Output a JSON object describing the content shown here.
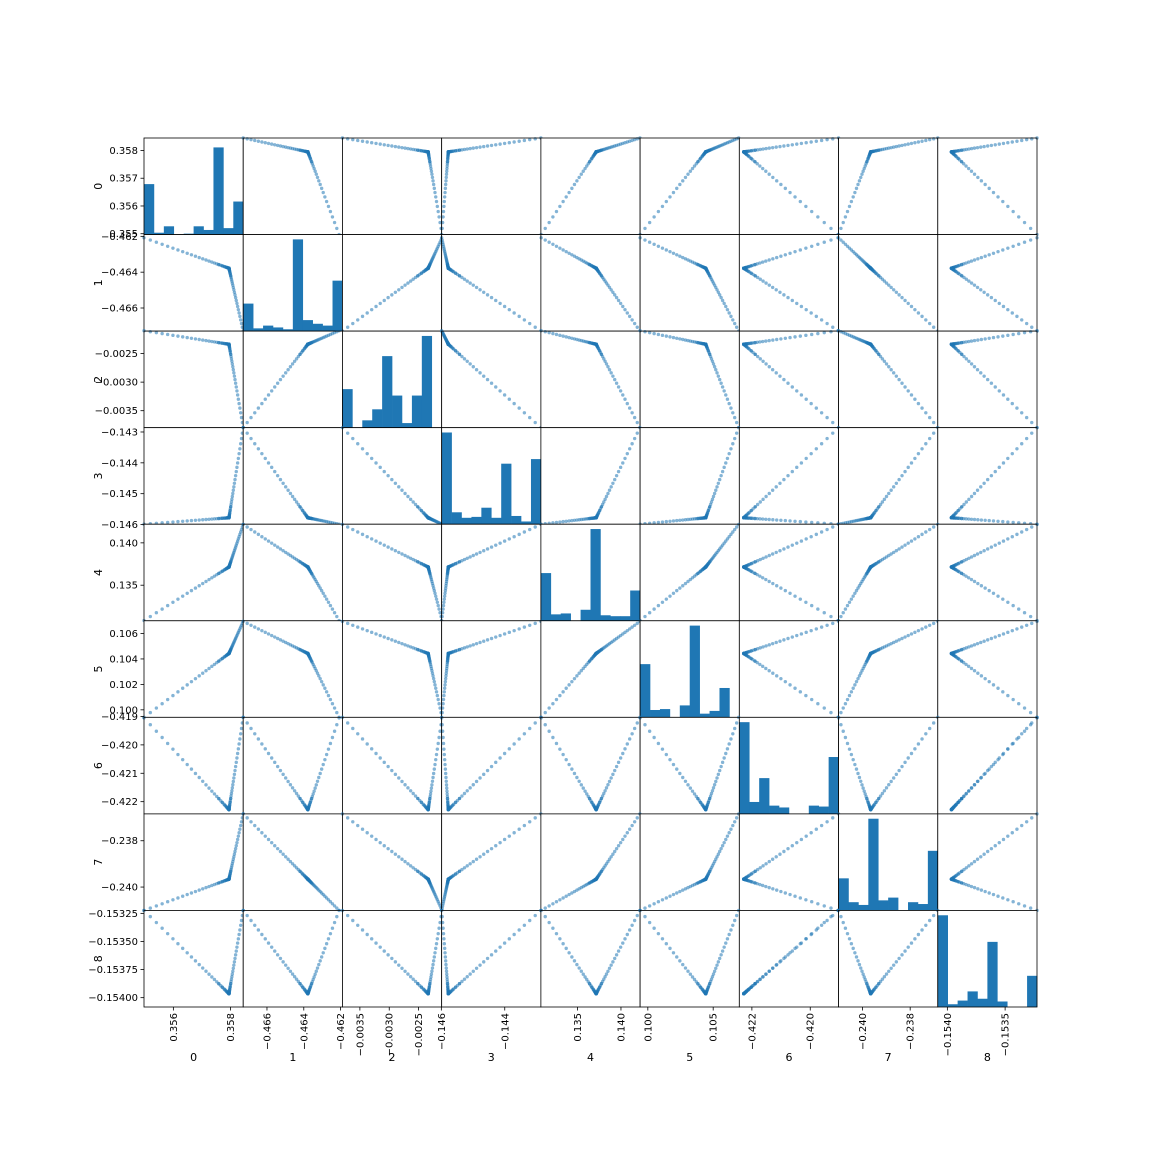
{
  "chart_data": {
    "type": "scatter",
    "variables": [
      "0",
      "1",
      "2",
      "3",
      "4",
      "5",
      "6",
      "7",
      "8"
    ],
    "axes": [
      {
        "name": "0",
        "range": [
          0.35497,
          0.35845
        ],
        "yticks": [
          "0.355",
          "0.356",
          "0.357",
          "0.358"
        ],
        "xticks": [
          "0.356",
          "0.358"
        ]
      },
      {
        "name": "1",
        "range": [
          -0.46729,
          -0.4619
        ],
        "yticks": [
          "−0.462",
          "−0.464",
          "−0.466"
        ],
        "xticks": [
          "−0.466",
          "−0.464",
          "−0.462"
        ]
      },
      {
        "name": "2",
        "range": [
          -0.003797,
          -0.002107
        ],
        "yticks": [
          "−0.0025",
          "−0.0030",
          "−0.0035"
        ],
        "xticks": [
          "−0.0035",
          "−0.0030",
          "−0.0025"
        ]
      },
      {
        "name": "3",
        "range": [
          -0.14599,
          -0.14286
        ],
        "yticks": [
          "−0.143",
          "−0.144",
          "−0.145",
          "−0.146"
        ],
        "xticks": [
          "−0.146",
          "−0.144"
        ]
      },
      {
        "name": "4",
        "range": [
          0.1308,
          0.1422
        ],
        "yticks": [
          "0.140",
          "0.135"
        ],
        "xticks": [
          "0.135",
          "0.140"
        ]
      },
      {
        "name": "5",
        "range": [
          0.09941,
          0.107
        ],
        "yticks": [
          "0.106",
          "0.104",
          "0.102",
          "0.100"
        ],
        "xticks": [
          "0.100",
          "0.105"
        ]
      },
      {
        "name": "6",
        "range": [
          -0.42243,
          -0.41903
        ],
        "yticks": [
          "−0.419",
          "−0.420",
          "−0.421",
          "−0.422"
        ],
        "xticks": [
          "−0.422",
          "−0.420"
        ]
      },
      {
        "name": "7",
        "range": [
          -0.24101,
          -0.23684
        ],
        "yticks": [
          "−0.238",
          "−0.240"
        ],
        "xticks": [
          "−0.240",
          "−0.238"
        ]
      },
      {
        "name": "8",
        "range": [
          -0.154083,
          -0.153224
        ],
        "yticks": [
          "−0.15325",
          "−0.15350",
          "−0.15375",
          "−0.15400"
        ],
        "xticks": [
          "−0.1540",
          "−0.1535"
        ]
      }
    ],
    "histograms": [
      [
        0.55,
        0.02,
        0.09,
        0,
        0.01,
        0.09,
        0.05,
        0.95,
        0.07,
        0.36
      ],
      [
        0.3,
        0.03,
        0.06,
        0.04,
        0.02,
        1.0,
        0.12,
        0.08,
        0.06,
        0.55
      ],
      [
        0.42,
        0,
        0.08,
        0.2,
        0.78,
        0.35,
        0.05,
        0.35,
        1.0,
        0
      ],
      [
        1.0,
        0.13,
        0.07,
        0.08,
        0.18,
        0.07,
        0.66,
        0.09,
        0.03,
        0.71
      ],
      [
        0.52,
        0.07,
        0.08,
        0,
        0.12,
        1.0,
        0.06,
        0.05,
        0.05,
        0.33
      ],
      [
        0.58,
        0.08,
        0.09,
        0,
        0.13,
        1.0,
        0.04,
        0.07,
        0.32,
        0
      ],
      [
        1.0,
        0.13,
        0.39,
        0.09,
        0.07,
        0,
        0,
        0.09,
        0.08,
        0.62
      ],
      [
        0.35,
        0.09,
        0.06,
        1.0,
        0.11,
        0.14,
        0,
        0.09,
        0.07,
        0.65
      ],
      [
        1.0,
        0.03,
        0.07,
        0.17,
        0.09,
        0.71,
        0.06,
        0,
        0,
        0.34
      ]
    ],
    "centers": [
      0.35795,
      -0.46378,
      -0.002337,
      -0.14578,
      0.13715,
      0.10443,
      -0.42228,
      -0.23966,
      -0.153965
    ],
    "arm1_end": [
      0.35497,
      -0.46208,
      -0.0021,
      -0.14599,
      0.13083,
      0.09941,
      -0.41905,
      -0.24101,
      -0.153224
    ],
    "arm2_end": [
      0.35845,
      -0.46729,
      -0.003797,
      -0.14286,
      0.14218,
      0.10695,
      -0.41903,
      -0.23684,
      -0.153224
    ],
    "grid": false
  }
}
